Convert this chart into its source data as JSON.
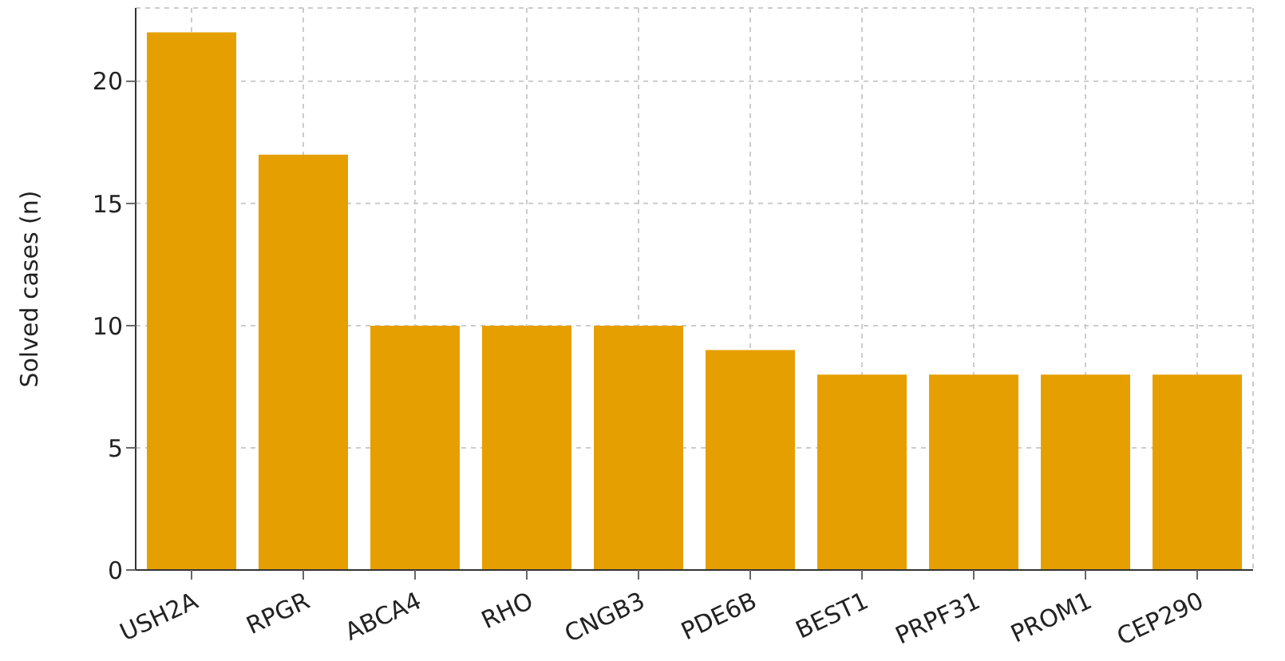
{
  "chart_data": {
    "type": "bar",
    "ylabel": "Solved cases (n)",
    "categories": [
      "USH2A",
      "RPGR",
      "ABCA4",
      "RHO",
      "CNGB3",
      "PDE6B",
      "BEST1",
      "PRPF31",
      "PROM1",
      "CEP290"
    ],
    "values": [
      22,
      17,
      10,
      10,
      10,
      9,
      8,
      8,
      8,
      8
    ],
    "color": "#e69f00",
    "ylim": [
      0,
      23
    ],
    "yticks": [
      0,
      5,
      10,
      15,
      20
    ],
    "grid": true
  }
}
